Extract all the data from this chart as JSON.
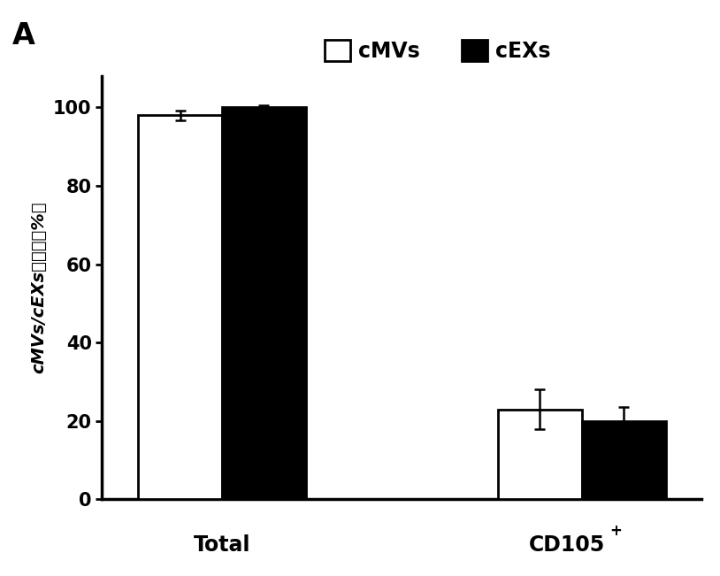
{
  "categories": [
    "Total",
    "CD105+"
  ],
  "cmvs_values": [
    98.0,
    23.0
  ],
  "cexs_values": [
    100.0,
    20.0
  ],
  "cmvs_errors": [
    1.2,
    5.0
  ],
  "cexs_errors": [
    0.5,
    3.5
  ],
  "bar_width": 0.28,
  "ylabel_ascii": "cMVs/cEXs",
  "ylabel_chinese": "的纯化（%）",
  "ylim": [
    0,
    108
  ],
  "yticks": [
    0,
    20,
    40,
    60,
    80,
    100
  ],
  "legend_labels": [
    "cMVs",
    "cEXs"
  ],
  "cmvs_color": "#ffffff",
  "cexs_color": "#000000",
  "edge_color": "#000000",
  "panel_label": "A",
  "background_color": "#ffffff",
  "bar_linewidth": 2.0,
  "axis_linewidth": 2.5,
  "tick_fontsize": 15,
  "legend_fontsize": 17,
  "xtick_fontsize": 17,
  "ylabel_fontsize": 14
}
